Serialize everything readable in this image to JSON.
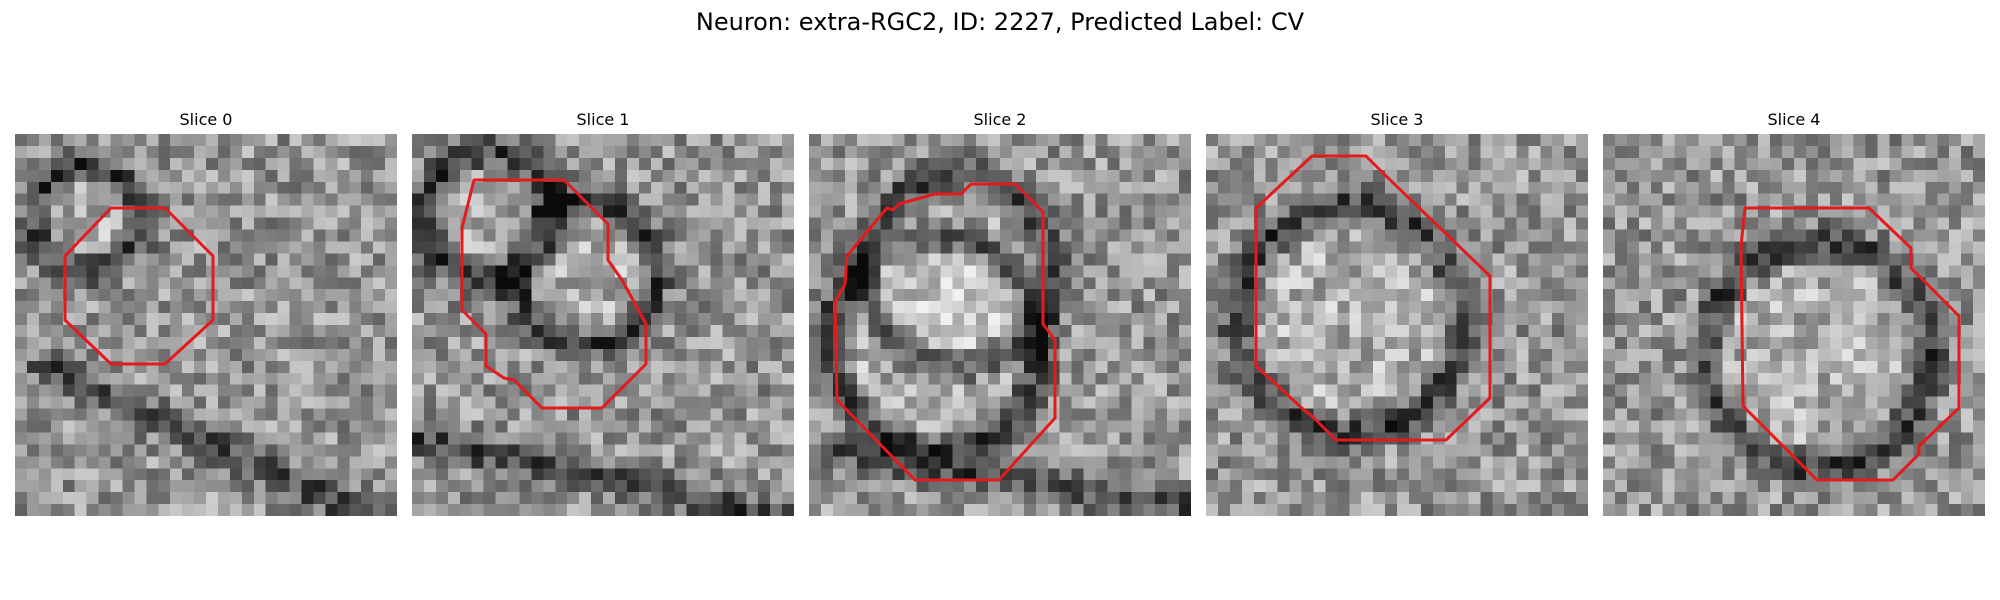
{
  "figure": {
    "title": "Neuron: extra-RGC2, ID: 2227, Predicted Label: CV",
    "contour_color": "#e41a1c",
    "colormap": "grayscale"
  },
  "panels": [
    {
      "title": "Slice 0"
    },
    {
      "title": "Slice 1"
    },
    {
      "title": "Slice 2"
    },
    {
      "title": "Slice 3"
    },
    {
      "title": "Slice 4"
    }
  ]
}
